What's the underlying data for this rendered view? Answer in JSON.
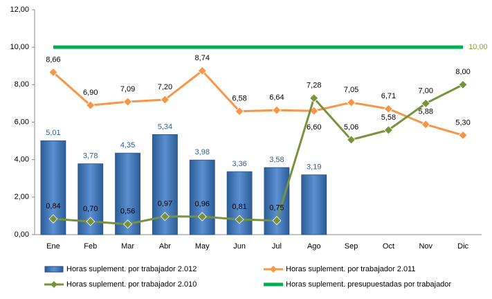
{
  "chart_data": {
    "type": "bar-line",
    "categories": [
      "Ene",
      "Feb",
      "Mar",
      "Abr",
      "May",
      "Jun",
      "Jul",
      "Ago",
      "Sep",
      "Oct",
      "Nov",
      "Dic"
    ],
    "ylim": [
      0,
      12
    ],
    "yticks": [
      {
        "value": 0,
        "label": "0,00"
      },
      {
        "value": 2,
        "label": "2,00"
      },
      {
        "value": 4,
        "label": "4,00"
      },
      {
        "value": 6,
        "label": "6,00"
      },
      {
        "value": 8,
        "label": "8,00"
      },
      {
        "value": 10,
        "label": "10,00"
      },
      {
        "value": 12,
        "label": "12,00"
      }
    ],
    "grid": false,
    "legend": "bottom",
    "series": [
      {
        "name": "Horas suplement. por trabajador 2.012",
        "type": "bar",
        "color": "#4f81bd",
        "values": [
          5.01,
          3.78,
          4.35,
          5.34,
          3.98,
          3.36,
          3.58,
          3.19,
          null,
          null,
          null,
          null
        ],
        "value_labels": [
          "5,01",
          "3,78",
          "4,35",
          "5,34",
          "3,98",
          "3,36",
          "3,58",
          "3,19",
          null,
          null,
          null,
          null
        ]
      },
      {
        "name": "Horas suplement. por trabajador 2.011",
        "type": "line",
        "color": "#f79646",
        "values": [
          8.66,
          6.9,
          7.09,
          7.2,
          8.74,
          6.58,
          6.64,
          6.6,
          7.05,
          6.71,
          5.88,
          5.3
        ],
        "value_labels": [
          "8,66",
          "6,90",
          "7,09",
          "7,20",
          "8,74",
          "6,58",
          "6,64",
          "6,60",
          "7,05",
          "6,71",
          "5,88",
          "5,30"
        ]
      },
      {
        "name": "Horas suplement. por trabajador 2.010",
        "type": "line",
        "color": "#77933c",
        "values": [
          0.84,
          0.7,
          0.56,
          0.97,
          0.96,
          0.81,
          0.75,
          7.28,
          5.06,
          5.58,
          7.0,
          8.0
        ],
        "value_labels": [
          "0,84",
          "0,70",
          "0,56",
          "0,97",
          "0,96",
          "0,81",
          "0,75",
          "7,28",
          "5,06",
          "5,58",
          "7,00",
          "8,00"
        ]
      },
      {
        "name": "Horas suplement. presupuestadas por trabajador",
        "type": "line",
        "color": "#00b050",
        "markers": false,
        "values": [
          10,
          10,
          10,
          10,
          10,
          10,
          10,
          10,
          10,
          10,
          10,
          10
        ],
        "value_labels": [
          null,
          null,
          null,
          null,
          null,
          null,
          null,
          null,
          null,
          null,
          null,
          "10,00"
        ]
      }
    ]
  }
}
